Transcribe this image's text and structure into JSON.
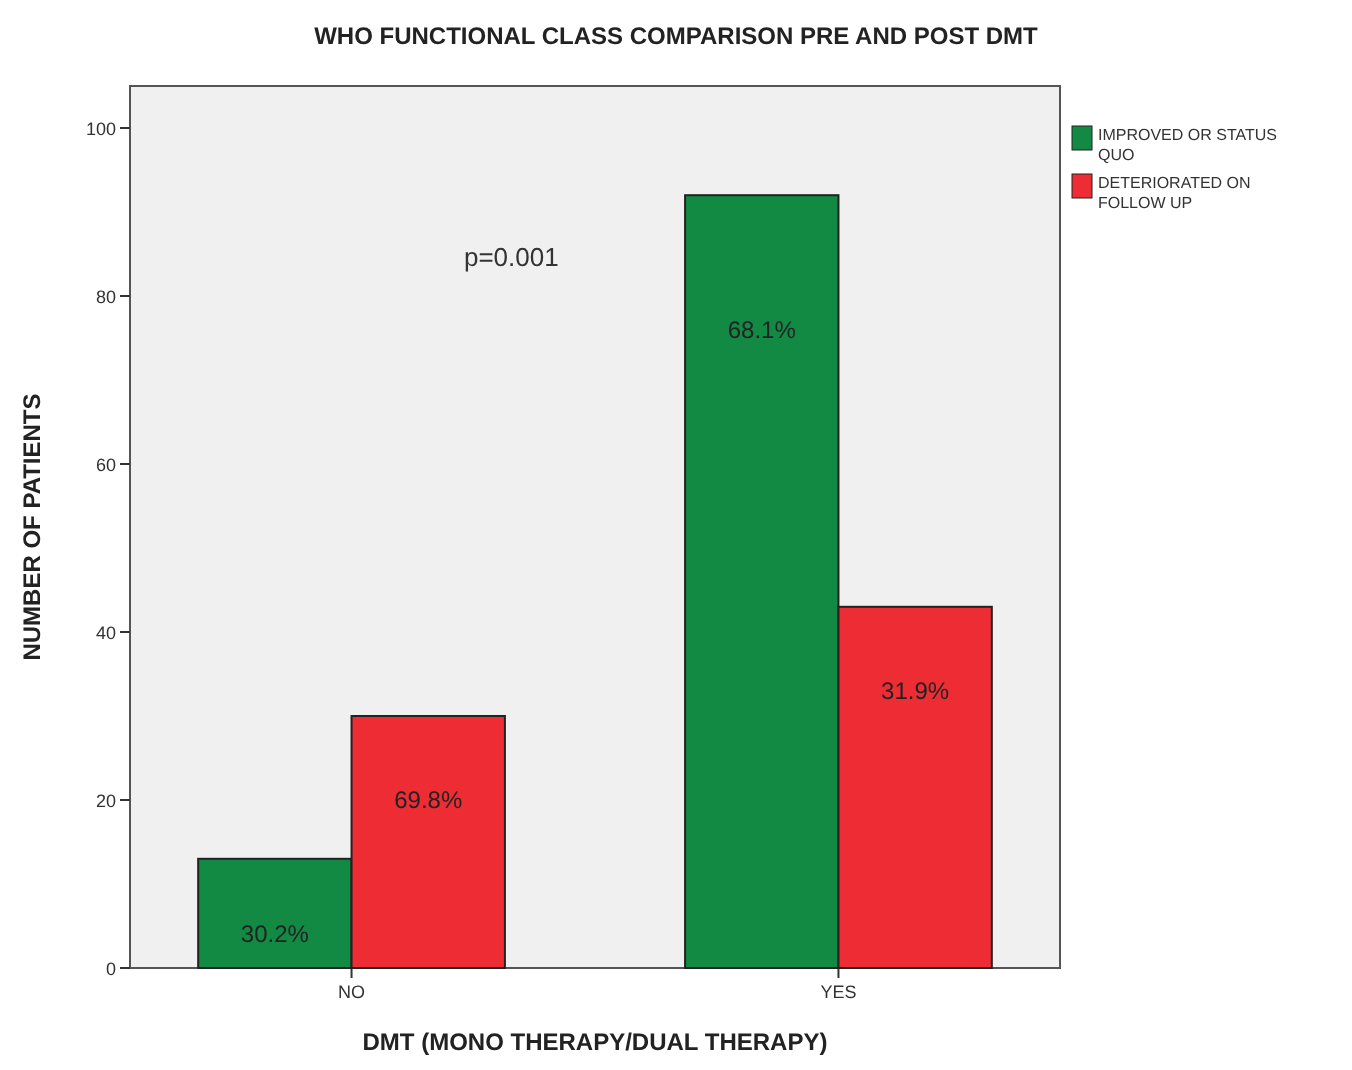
{
  "chart_data": {
    "type": "bar",
    "title": "WHO FUNCTIONAL CLASS COMPARISON PRE AND POST DMT",
    "xlabel": "DMT (MONO THERAPY/DUAL THERAPY)",
    "ylabel": "NUMBER OF PATIENTS",
    "categories": [
      "NO",
      "YES"
    ],
    "series": [
      {
        "name": "IMPROVED OR STATUS QUO",
        "color": "#138a43",
        "values": [
          13,
          92
        ]
      },
      {
        "name": "DETERIORATED ON FOLLOW UP",
        "color": "#ee2c34",
        "values": [
          30,
          43
        ]
      }
    ],
    "ylim": [
      0,
      105
    ],
    "yticks": [
      0,
      20,
      40,
      60,
      80,
      100
    ],
    "grid": false,
    "legend": "right",
    "annotations": [
      "p=0.001",
      {
        "text": "30.2%",
        "x": "NO",
        "y": 4
      },
      {
        "text": "69.8%",
        "x": "NO",
        "y": 20
      },
      {
        "text": "68.1%",
        "x": "YES",
        "y": 76
      },
      {
        "text": "31.9%",
        "x": "YES",
        "y": 33
      }
    ]
  }
}
